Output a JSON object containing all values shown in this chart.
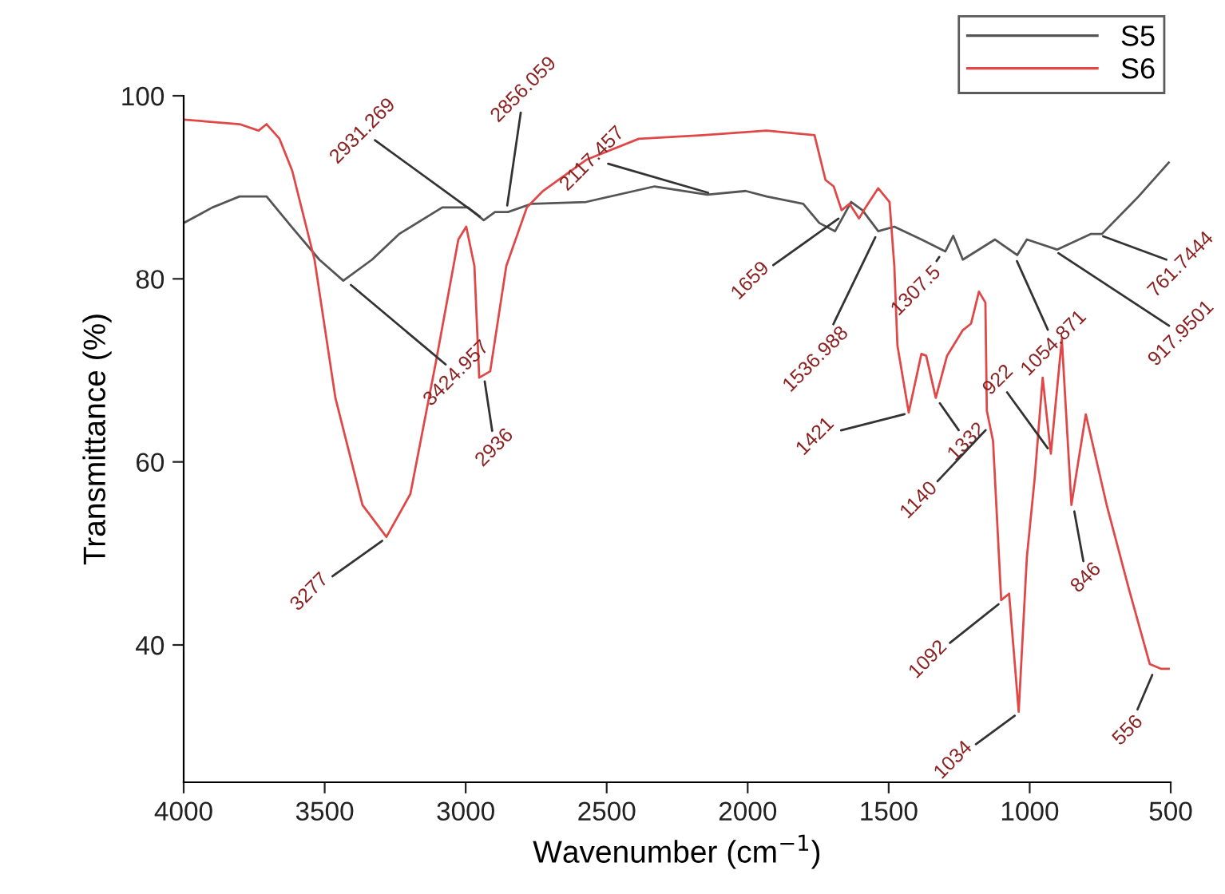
{
  "chart_data": {
    "type": "line",
    "xlabel": "Wavenumber (cm$^{−1}$)",
    "ylabel": "Transmittance (%)",
    "xlim": [
      4000,
      500
    ],
    "ylim": [
      25,
      100
    ],
    "xticks": [
      4000,
      3500,
      3000,
      2500,
      2000,
      1500,
      1000,
      500
    ],
    "yticks": [
      40,
      60,
      80,
      100
    ],
    "grid": false,
    "legend": "top right",
    "marker": "none",
    "line_style": "solid",
    "series": [
      {
        "name": "S5",
        "color": "#555555",
        "x": [
          4000,
          3898,
          3802,
          3706,
          3615,
          3519,
          3434,
          3332,
          3236,
          3083,
          2992,
          2936,
          2896,
          2850,
          2766,
          2573,
          2330,
          2143,
          2007,
          1933,
          1803,
          1746,
          1690,
          1633,
          1593,
          1537,
          1480,
          1384,
          1299,
          1271,
          1237,
          1123,
          1044,
          1010,
          903,
          784,
          744,
          614,
          507
        ],
        "values": [
          86.1,
          87.8,
          89,
          89,
          85.6,
          82.1,
          79.8,
          82.1,
          84.9,
          87.8,
          87.8,
          86.4,
          87.3,
          87.3,
          88.2,
          88.4,
          90.1,
          89.2,
          89.6,
          89,
          88.2,
          86.1,
          85.2,
          88.4,
          87.5,
          85.2,
          85.7,
          84.3,
          83,
          84.7,
          82.1,
          84.3,
          82.6,
          84.3,
          83.2,
          84.9,
          84.9,
          89,
          92.7
        ]
      },
      {
        "name": "S6",
        "color": "#e04848",
        "x": [
          4000,
          3802,
          3734,
          3706,
          3660,
          3615,
          3536,
          3462,
          3366,
          3281,
          3196,
          3105,
          3026,
          2998,
          2969,
          2952,
          2913,
          2856,
          2783,
          2726,
          2573,
          2386,
          2160,
          1933,
          1763,
          1724,
          1695,
          1667,
          1639,
          1605,
          1582,
          1537,
          1497,
          1480,
          1469,
          1429,
          1384,
          1367,
          1333,
          1293,
          1237,
          1208,
          1180,
          1157,
          1152,
          1130,
          1101,
          1073,
          1039,
          1010,
          982,
          954,
          925,
          886,
          852,
          801,
          727,
          648,
          574,
          535,
          507
        ],
        "values": [
          97.4,
          96.9,
          96.2,
          96.9,
          95.3,
          91.8,
          82.1,
          67,
          55.3,
          51.8,
          56.5,
          71,
          84.3,
          85.7,
          81.4,
          69.2,
          69.9,
          81.4,
          87.8,
          89.6,
          93,
          95.3,
          95.7,
          96.2,
          95.7,
          90.8,
          90.1,
          87.5,
          88.2,
          86.6,
          87.8,
          89.9,
          88.4,
          81.4,
          72.7,
          65.4,
          71.8,
          71.6,
          67,
          71.6,
          74.4,
          75.1,
          78.6,
          77.4,
          65.6,
          62.3,
          44.9,
          45.6,
          32.7,
          49.6,
          58.3,
          69.2,
          60.9,
          73.4,
          55.3,
          65.2,
          55.3,
          46.1,
          37.9,
          37.4,
          37.4
        ]
      }
    ],
    "annotations": [
      {
        "text": "3424.957",
        "x": 3424.957,
        "y": 79.8
      },
      {
        "text": "2931.269",
        "x": 2931.269,
        "y": 86.4
      },
      {
        "text": "2856.059",
        "x": 2856.059,
        "y": 87.3
      },
      {
        "text": "2117.457",
        "x": 2117.457,
        "y": 89.2
      },
      {
        "text": "1659",
        "x": 1659,
        "y": 87
      },
      {
        "text": "1536.988",
        "x": 1536.988,
        "y": 85.2
      },
      {
        "text": "1307.5",
        "x": 1307.5,
        "y": 83
      },
      {
        "text": "1054.871",
        "x": 1054.871,
        "y": 82.6
      },
      {
        "text": "917.9501",
        "x": 917.9501,
        "y": 83.2
      },
      {
        "text": "761.7444",
        "x": 761.7444,
        "y": 84.9
      },
      {
        "text": "3277",
        "x": 3277,
        "y": 51.8
      },
      {
        "text": "2936",
        "x": 2936,
        "y": 69.5
      },
      {
        "text": "1421",
        "x": 1421,
        "y": 65.4
      },
      {
        "text": "1332",
        "x": 1332,
        "y": 67
      },
      {
        "text": "1140",
        "x": 1140,
        "y": 64
      },
      {
        "text": "922",
        "x": 922,
        "y": 60.9
      },
      {
        "text": "1092",
        "x": 1092,
        "y": 44.9
      },
      {
        "text": "1034",
        "x": 1034,
        "y": 32.7
      },
      {
        "text": "846",
        "x": 846,
        "y": 55.3
      },
      {
        "text": "556",
        "x": 556,
        "y": 37.4
      }
    ]
  }
}
